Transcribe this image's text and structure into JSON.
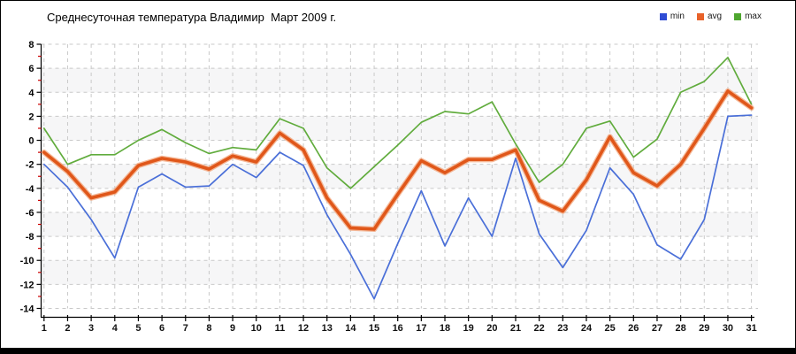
{
  "widget": {
    "title": "Среднесуточная температура Владимир  Март 2009 г.",
    "footer_bar_color": "#000000",
    "background": "#ffffff",
    "border_color": "#000000"
  },
  "legend": [
    {
      "label": "min",
      "color": "#2f4cd4"
    },
    {
      "label": "avg",
      "color": "#e8622a"
    },
    {
      "label": "max",
      "color": "#4ea62f"
    }
  ],
  "chart_data": {
    "type": "line",
    "title": "Среднесуточная температура Владимир  Март 2009 г.",
    "xlabel": "",
    "ylabel": "",
    "x": [
      1,
      2,
      3,
      4,
      5,
      6,
      7,
      8,
      9,
      10,
      11,
      12,
      13,
      14,
      15,
      16,
      17,
      18,
      19,
      20,
      21,
      22,
      23,
      24,
      25,
      26,
      27,
      28,
      29,
      30,
      31
    ],
    "xticks": [
      "1",
      "2",
      "3",
      "4",
      "5",
      "6",
      "7",
      "8",
      "9",
      "10",
      "11",
      "12",
      "13",
      "14",
      "15",
      "16",
      "17",
      "18",
      "19",
      "20",
      "21",
      "22",
      "23",
      "24",
      "25",
      "26",
      "27",
      "28",
      "29",
      "30",
      "31"
    ],
    "ylim": [
      -14,
      8
    ],
    "yticks": [
      8,
      6,
      4,
      2,
      0,
      -2,
      -4,
      -6,
      -8,
      -10,
      -12,
      -14
    ],
    "ytick_step": 2,
    "grid": true,
    "grid_color": "#c9c9c9",
    "band_color": "#f6f6f7",
    "axis_color": "#000000",
    "minor_tick_color": "#cc0000",
    "legend_position": "top-right",
    "series": [
      {
        "name": "min",
        "line_color": "#4a6fd8",
        "line_width": 1.7,
        "values": [
          -2.0,
          -3.9,
          -6.6,
          -9.8,
          -3.9,
          -2.8,
          -3.9,
          -3.8,
          -2.0,
          -3.1,
          -1.0,
          -2.1,
          -6.2,
          -9.5,
          -13.2,
          -8.6,
          -4.2,
          -8.8,
          -4.8,
          -8.0,
          -1.5,
          -7.8,
          -10.6,
          -7.5,
          -2.3,
          -4.5,
          -8.7,
          -9.9,
          -6.6,
          2.0,
          2.1
        ]
      },
      {
        "name": "avg",
        "line_color": "#e0571a",
        "halo_color": "#f3a87e",
        "line_width": 3.6,
        "values": [
          -1.0,
          -2.6,
          -4.8,
          -4.3,
          -2.1,
          -1.5,
          -1.8,
          -2.4,
          -1.3,
          -1.8,
          0.6,
          -0.8,
          -4.8,
          -7.3,
          -7.4,
          -4.5,
          -1.7,
          -2.7,
          -1.6,
          -1.6,
          -0.8,
          -5.0,
          -5.9,
          -3.3,
          0.3,
          -2.7,
          -3.8,
          -2.0,
          1.0,
          4.1,
          2.7
        ]
      },
      {
        "name": "max",
        "line_color": "#61ac3d",
        "line_width": 1.7,
        "values": [
          1.0,
          -2.0,
          -1.2,
          -1.2,
          0.0,
          0.9,
          -0.2,
          -1.1,
          -0.6,
          -0.8,
          1.8,
          1.0,
          -2.3,
          -4.0,
          -2.2,
          -0.4,
          1.5,
          2.4,
          2.2,
          3.2,
          -0.3,
          -3.5,
          -2.0,
          1.0,
          1.6,
          -1.4,
          0.1,
          4.0,
          4.9,
          6.9,
          3.0
        ]
      }
    ]
  }
}
